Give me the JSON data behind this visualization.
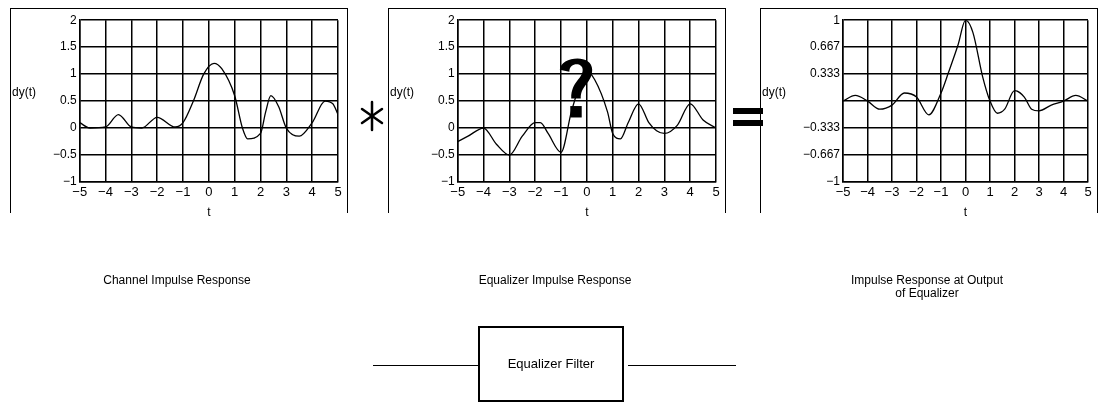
{
  "chart_data": [
    {
      "type": "line",
      "title": "Channel Impulse Response",
      "xlabel": "t",
      "ylabel": "dy(t)",
      "xlim": [
        -5,
        5
      ],
      "ylim": [
        -1,
        2
      ],
      "xticks": [
        -5,
        -4,
        -3,
        -2,
        -1,
        0,
        1,
        2,
        3,
        4,
        5
      ],
      "yticks": [
        -1,
        -0.5,
        0,
        0.5,
        1,
        1.5,
        2
      ],
      "grid": true,
      "marker": "none",
      "line_style": "solid",
      "legend": false,
      "series": [
        {
          "color": "#000000",
          "x": [
            -5,
            -4.6,
            -4,
            -3.5,
            -3,
            -2.6,
            -2,
            -1.3,
            -1,
            -0.6,
            -0.2,
            0.2,
            0.5,
            1,
            1.3,
            1.5,
            2,
            2.2,
            2.4,
            2.7,
            3,
            3.5,
            4,
            4.5,
            4.8,
            5
          ],
          "values": [
            0.1,
            0,
            0.02,
            0.25,
            0.02,
            0,
            0.2,
            0.02,
            0.1,
            0.5,
            1,
            1.2,
            1.1,
            0.6,
            0,
            -0.2,
            -0.1,
            0.3,
            0.6,
            0.4,
            0,
            -0.15,
            0.1,
            0.5,
            0.45,
            0.25
          ]
        }
      ]
    },
    {
      "type": "line",
      "title": "Equalizer Impulse Response",
      "xlabel": "t",
      "ylabel": "dy(t)",
      "xlim": [
        -5,
        5
      ],
      "ylim": [
        -1,
        2
      ],
      "xticks": [
        -5,
        -4,
        -3,
        -2,
        -1,
        0,
        1,
        2,
        3,
        4,
        5
      ],
      "yticks": [
        -1,
        -0.5,
        0,
        0.5,
        1,
        1.5,
        2
      ],
      "grid": true,
      "marker": "none",
      "line_style": "solid",
      "legend": false,
      "series": [
        {
          "color": "#000000",
          "x": [
            -5,
            -4.6,
            -4,
            -3.5,
            -3,
            -2.5,
            -2,
            -1.8,
            -1.5,
            -1,
            -0.6,
            -0.2,
            0,
            0.3,
            0.8,
            1,
            1.3,
            1.6,
            2,
            2.4,
            2.7,
            3,
            3.5,
            4,
            4.5,
            5
          ],
          "values": [
            -0.25,
            -0.15,
            0,
            -0.3,
            -0.5,
            -0.15,
            0.1,
            0.1,
            -0.1,
            -0.45,
            0.3,
            0.9,
            1.05,
            0.9,
            0.3,
            -0.1,
            -0.2,
            0.1,
            0.45,
            0.1,
            -0.05,
            -0.1,
            0.05,
            0.45,
            0.15,
            0
          ]
        }
      ]
    },
    {
      "type": "line",
      "title": "Impulse Response at Output of Equalizer",
      "xlabel": "t",
      "ylabel": "dy(t)",
      "xlim": [
        -5,
        5
      ],
      "ylim": [
        -1,
        1
      ],
      "xticks": [
        -5,
        -4,
        -3,
        -2,
        -1,
        0,
        1,
        2,
        3,
        4,
        5
      ],
      "yticks": [
        -1,
        {
          "value": -0.667,
          "label": "−0.667"
        },
        {
          "value": -0.333,
          "label": "−0.333"
        },
        {
          "value": 0,
          "label": null
        },
        0.333,
        0.667,
        1
      ],
      "grid": true,
      "marker": "none",
      "line_style": "solid",
      "legend": false,
      "series": [
        {
          "color": "#000000",
          "x": [
            -5,
            -4.5,
            -4,
            -3.5,
            -3,
            -2.5,
            -2,
            -1.5,
            -1,
            -0.7,
            -0.3,
            0,
            0.3,
            0.7,
            1,
            1.3,
            1.6,
            2,
            2.4,
            2.7,
            3,
            3.5,
            4,
            4.5,
            5
          ],
          "values": [
            0,
            0.07,
            0,
            -0.1,
            -0.05,
            0.1,
            0.05,
            -0.17,
            0.1,
            0.35,
            0.7,
            1,
            0.85,
            0.3,
            0,
            -0.15,
            -0.1,
            0.13,
            0.05,
            -0.1,
            -0.12,
            -0.05,
            0,
            0.07,
            0
          ]
        }
      ]
    },
    {
      "type": "other",
      "title": "Equalizer Filter"
    }
  ]
}
